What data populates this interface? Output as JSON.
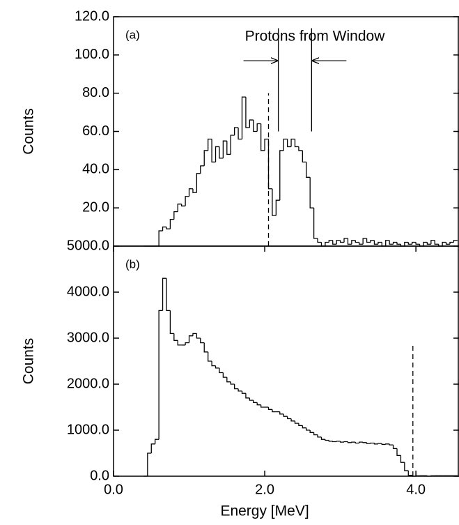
{
  "chart_data": [
    {
      "type": "histogram",
      "label": "(a)",
      "annotation": "Protons from Window",
      "y_label": "Counts",
      "window": [
        2.18,
        2.62
      ],
      "dashed_x": 2.05,
      "dashed_top": 80,
      "xlim": [
        0,
        4.57
      ],
      "ylim": [
        0,
        120
      ],
      "yticks": [
        {
          "value": 20,
          "label": "20.0"
        },
        {
          "value": 40,
          "label": "40.0"
        },
        {
          "value": 60,
          "label": "60.0"
        },
        {
          "value": 80,
          "label": "80.0"
        },
        {
          "value": 100,
          "label": "100.0"
        },
        {
          "value": 120,
          "label": "120.0"
        }
      ],
      "bins": [
        0.4,
        0.45,
        0.5,
        0.55,
        0.6,
        0.65,
        0.7,
        0.75,
        0.8,
        0.85,
        0.9,
        0.95,
        1.0,
        1.05,
        1.1,
        1.15,
        1.2,
        1.25,
        1.3,
        1.35,
        1.4,
        1.45,
        1.5,
        1.55,
        1.6,
        1.65,
        1.7,
        1.75,
        1.8,
        1.85,
        1.9,
        1.95,
        2.0,
        2.05,
        2.1,
        2.15,
        2.2,
        2.25,
        2.3,
        2.35,
        2.4,
        2.45,
        2.5,
        2.55,
        2.6,
        2.65,
        2.7,
        2.75,
        2.8,
        2.85,
        2.9,
        2.95,
        3.0,
        3.05,
        3.1,
        3.15,
        3.2,
        3.25,
        3.3,
        3.35,
        3.4,
        3.45,
        3.5,
        3.55,
        3.6,
        3.65,
        3.7,
        3.75,
        3.8,
        3.85,
        3.9,
        3.95,
        4.0,
        4.05,
        4.1,
        4.15,
        4.2,
        4.25,
        4.3,
        4.35,
        4.4,
        4.45,
        4.5,
        4.55
      ],
      "values": [
        0,
        0,
        0,
        0,
        8,
        10,
        9,
        14,
        18,
        22,
        21,
        26,
        30,
        28,
        38,
        42,
        50,
        56,
        44,
        52,
        46,
        55,
        48,
        58,
        62,
        56,
        78,
        62,
        66,
        60,
        64,
        50,
        56,
        30,
        16,
        24,
        50,
        56,
        52,
        56,
        52,
        50,
        44,
        36,
        20,
        4,
        2,
        0,
        2,
        3,
        1,
        3,
        2,
        4,
        1,
        3,
        2,
        1,
        4,
        2,
        3,
        1,
        2,
        0,
        3,
        1,
        2,
        1,
        0,
        2,
        1,
        2,
        1,
        0,
        2,
        1,
        3,
        1,
        0,
        2,
        1,
        2,
        3
      ]
    },
    {
      "type": "histogram",
      "label": "(b)",
      "y_label": "Counts",
      "x_label": "Energy [MeV]",
      "dashed_x": 3.96,
      "dashed_top": 2900,
      "xlim": [
        0,
        4.57
      ],
      "ylim": [
        0,
        5000
      ],
      "xticks": [
        {
          "value": 0,
          "label": "0.0"
        },
        {
          "value": 2,
          "label": "2.0"
        },
        {
          "value": 4,
          "label": "4.0"
        }
      ],
      "yticks": [
        {
          "value": 0,
          "label": "0.0"
        },
        {
          "value": 1000,
          "label": "1000.0"
        },
        {
          "value": 2000,
          "label": "2000.0"
        },
        {
          "value": 3000,
          "label": "3000.0"
        },
        {
          "value": 4000,
          "label": "4000.0"
        },
        {
          "value": 5000,
          "label": "5000.0"
        }
      ],
      "bins": [
        0.4,
        0.45,
        0.5,
        0.55,
        0.6,
        0.65,
        0.7,
        0.75,
        0.8,
        0.85,
        0.9,
        0.95,
        1.0,
        1.05,
        1.1,
        1.15,
        1.2,
        1.25,
        1.3,
        1.35,
        1.4,
        1.45,
        1.5,
        1.55,
        1.6,
        1.65,
        1.7,
        1.75,
        1.8,
        1.85,
        1.9,
        1.95,
        2.0,
        2.05,
        2.1,
        2.15,
        2.2,
        2.25,
        2.3,
        2.35,
        2.4,
        2.45,
        2.5,
        2.55,
        2.6,
        2.65,
        2.7,
        2.75,
        2.8,
        2.85,
        2.9,
        2.95,
        3.0,
        3.05,
        3.1,
        3.15,
        3.2,
        3.25,
        3.3,
        3.35,
        3.4,
        3.45,
        3.5,
        3.55,
        3.6,
        3.65,
        3.7,
        3.75,
        3.8,
        3.85,
        3.9,
        3.95,
        4.0,
        4.05,
        4.1,
        4.15,
        4.2,
        4.25,
        4.3,
        4.35,
        4.4,
        4.45,
        4.5,
        4.55
      ],
      "values": [
        0,
        500,
        700,
        800,
        3600,
        4300,
        3600,
        3100,
        2950,
        2850,
        2850,
        2900,
        3050,
        3100,
        3000,
        2900,
        2700,
        2500,
        2400,
        2350,
        2250,
        2150,
        2050,
        2000,
        1900,
        1850,
        1800,
        1700,
        1650,
        1600,
        1550,
        1500,
        1500,
        1450,
        1400,
        1400,
        1350,
        1300,
        1250,
        1200,
        1150,
        1100,
        1050,
        1000,
        950,
        900,
        850,
        800,
        780,
        760,
        750,
        760,
        740,
        750,
        730,
        740,
        720,
        740,
        730,
        710,
        720,
        700,
        710,
        690,
        700,
        680,
        600,
        450,
        300,
        120,
        20,
        0,
        10,
        10,
        10,
        0,
        10,
        10,
        10,
        10,
        10,
        10,
        10
      ]
    }
  ]
}
